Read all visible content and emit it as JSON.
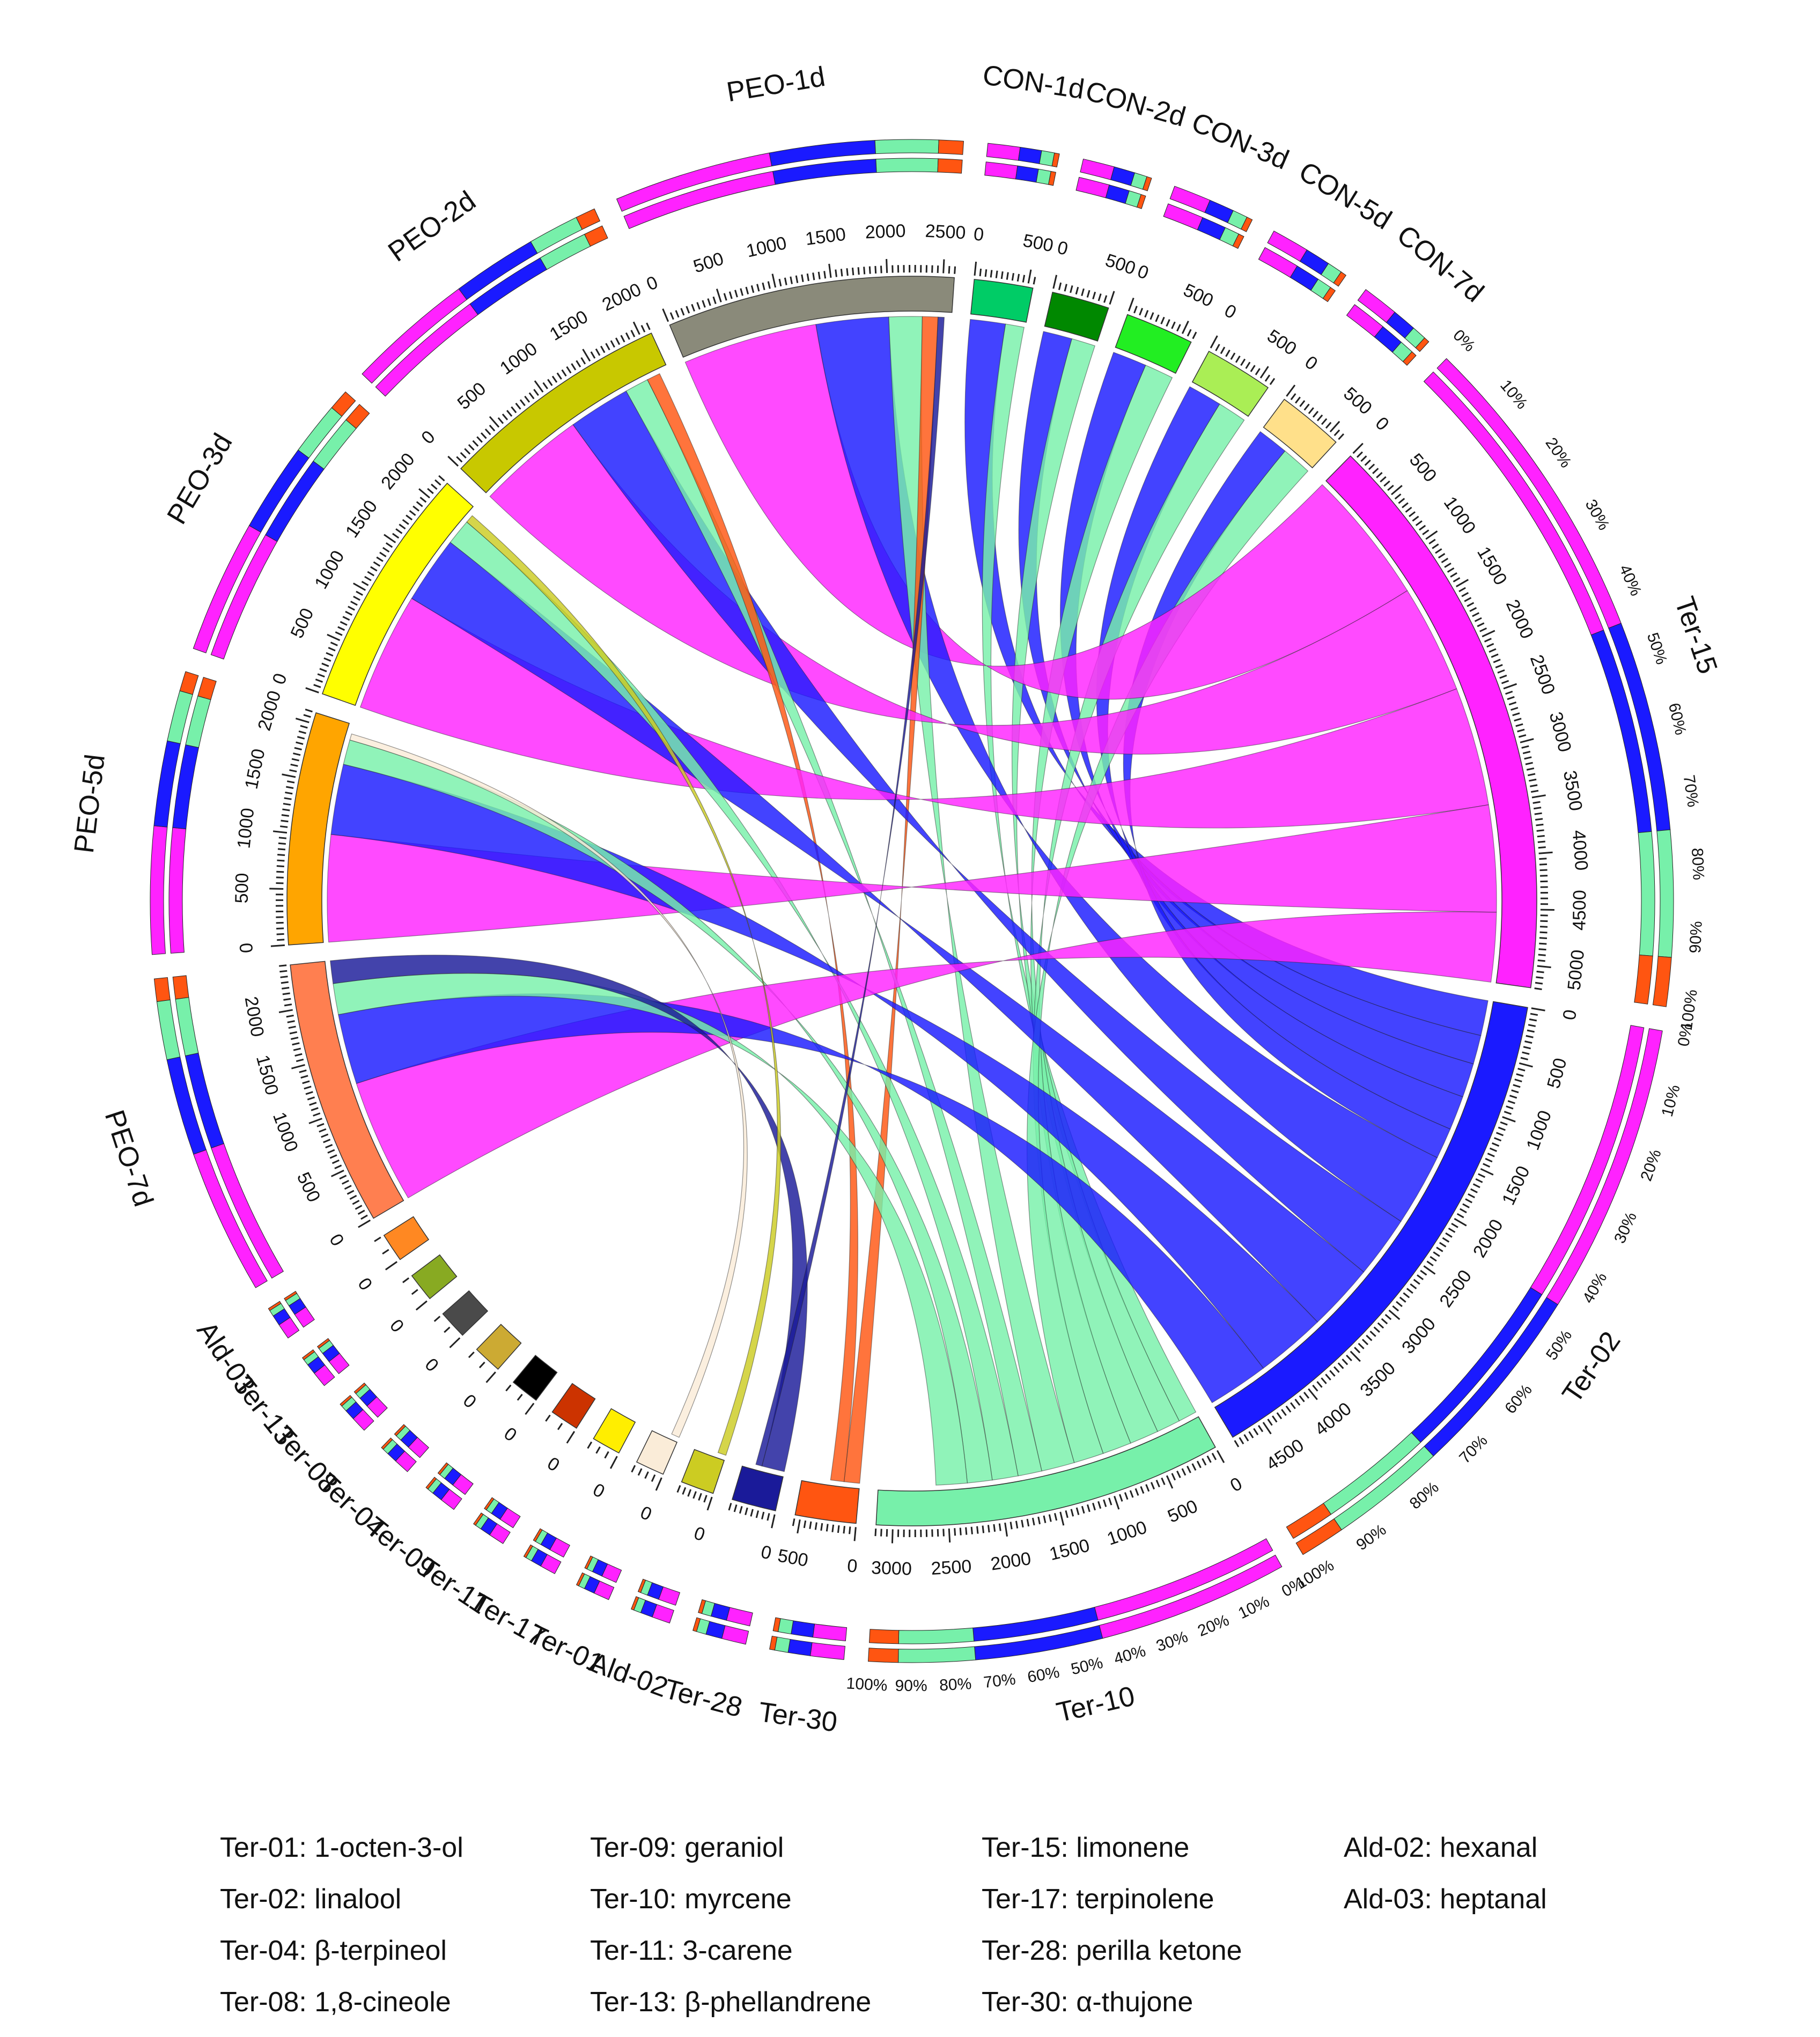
{
  "chart_data": {
    "type": "chord",
    "title": "",
    "samples": [
      {
        "id": "CON-1d",
        "total": 530,
        "scale_ticks": [
          "0",
          "500"
        ]
      },
      {
        "id": "CON-2d",
        "total": 520,
        "scale_ticks": [
          "0",
          "500"
        ]
      },
      {
        "id": "CON-3d",
        "total": 620,
        "scale_ticks": [
          "0",
          "500"
        ]
      },
      {
        "id": "CON-5d",
        "total": 620,
        "scale_ticks": [
          "0",
          "500"
        ]
      },
      {
        "id": "CON-7d",
        "total": 600,
        "scale_ticks": [
          "0",
          "500"
        ]
      },
      {
        "id": "Ter-15",
        "total": 5200,
        "scale_ticks": [
          "0",
          "500",
          "1000",
          "1500",
          "2000",
          "2500",
          "3000",
          "3500",
          "4000",
          "4500",
          "5000"
        ]
      },
      {
        "id": "Ter-02",
        "total": 4800,
        "scale_ticks": [
          "0",
          "500",
          "1000",
          "1500",
          "2000",
          "2500",
          "3000",
          "3500",
          "4000",
          "4500"
        ]
      },
      {
        "id": "Ter-10",
        "total": 3150,
        "scale_ticks": [
          "0",
          "500",
          "1000",
          "1500",
          "2000",
          "2500",
          "3000"
        ]
      },
      {
        "id": "Ter-30",
        "total": 550,
        "scale_ticks": [
          "0",
          "500"
        ]
      },
      {
        "id": "Ter-28",
        "total": 400,
        "scale_ticks": [
          "0"
        ]
      },
      {
        "id": "Ald-02",
        "total": 300,
        "scale_ticks": [
          "0"
        ]
      },
      {
        "id": "Ter-01",
        "total": 200,
        "scale_ticks": [
          "0"
        ]
      },
      {
        "id": "Ter-17",
        "total": 150,
        "scale_ticks": [
          "0"
        ]
      },
      {
        "id": "Ter-11",
        "total": 120,
        "scale_ticks": [
          "0"
        ]
      },
      {
        "id": "Ter-09",
        "total": 100,
        "scale_ticks": [
          "0"
        ]
      },
      {
        "id": "Ter-04",
        "total": 90,
        "scale_ticks": [
          "0"
        ]
      },
      {
        "id": "Ter-08",
        "total": 80,
        "scale_ticks": [
          "0"
        ]
      },
      {
        "id": "Ter-13",
        "total": 70,
        "scale_ticks": [
          "0"
        ]
      },
      {
        "id": "Ald-03",
        "total": 60,
        "scale_ticks": [
          "0"
        ]
      },
      {
        "id": "PEO-7d",
        "total": 2400,
        "scale_ticks": [
          "0",
          "500",
          "1000",
          "1500",
          "2000"
        ]
      },
      {
        "id": "PEO-5d",
        "total": 2100,
        "scale_ticks": [
          "0",
          "500",
          "1000",
          "1500",
          "2000"
        ]
      },
      {
        "id": "PEO-3d",
        "total": 2200,
        "scale_ticks": [
          "0",
          "500",
          "1000",
          "1500",
          "2000"
        ]
      },
      {
        "id": "PEO-2d",
        "total": 2100,
        "scale_ticks": [
          "0",
          "500",
          "1000",
          "1500",
          "2000"
        ]
      },
      {
        "id": "PEO-1d",
        "total": 2600,
        "scale_ticks": [
          "0",
          "500",
          "1000",
          "1500",
          "2000",
          "2500"
        ]
      }
    ],
    "percent_ticks": [
      "0%",
      "10%",
      "20%",
      "30%",
      "40%",
      "50%",
      "60%",
      "70%",
      "80%",
      "90%",
      "100%"
    ],
    "colors": {
      "CON-1d": "#00cc66",
      "CON-2d": "#008800",
      "CON-3d": "#22ee22",
      "CON-5d": "#aaee55",
      "CON-7d": "#ffe08a",
      "Ter-15": "#ff22ff",
      "Ter-02": "#1a1aff",
      "Ter-10": "#77f0aa",
      "Ter-30": "#ff5511",
      "Ter-28": "#1a1a99",
      "Ald-02": "#cccc22",
      "Ter-01": "#faecd8",
      "Ter-17": "#ffee00",
      "Ter-11": "#cc3300",
      "Ter-09": "#000000",
      "Ter-04": "#ccaa33",
      "Ter-08": "#4a4a4a",
      "Ter-13": "#88aa22",
      "Ald-03": "#ff8822",
      "PEO-7d": "#ff7f50",
      "PEO-5d": "#ffa500",
      "PEO-3d": "#ffff00",
      "PEO-2d": "#c8c800",
      "PEO-1d": "#8a8a7a"
    },
    "links": [
      {
        "source": "CON-1d",
        "target": "Ter-15",
        "value": 0
      },
      {
        "source": "CON-1d",
        "target": "Ter-02",
        "value": 340
      },
      {
        "source": "CON-1d",
        "target": "Ter-10",
        "value": 180
      },
      {
        "source": "CON-2d",
        "target": "Ter-02",
        "value": 280
      },
      {
        "source": "CON-2d",
        "target": "Ter-10",
        "value": 230
      },
      {
        "source": "CON-3d",
        "target": "Ter-02",
        "value": 330
      },
      {
        "source": "CON-3d",
        "target": "Ter-10",
        "value": 280
      },
      {
        "source": "CON-5d",
        "target": "Ter-02",
        "value": 330
      },
      {
        "source": "CON-5d",
        "target": "Ter-10",
        "value": 280
      },
      {
        "source": "CON-7d",
        "target": "Ter-02",
        "value": 300
      },
      {
        "source": "CON-7d",
        "target": "Ter-10",
        "value": 290
      },
      {
        "source": "PEO-1d",
        "target": "Ter-15",
        "value": 1300
      },
      {
        "source": "PEO-1d",
        "target": "Ter-02",
        "value": 700
      },
      {
        "source": "PEO-1d",
        "target": "Ter-10",
        "value": 320
      },
      {
        "source": "PEO-1d",
        "target": "Ter-30",
        "value": 150
      },
      {
        "source": "PEO-2d",
        "target": "Ter-15",
        "value": 1050
      },
      {
        "source": "PEO-2d",
        "target": "Ter-02",
        "value": 600
      },
      {
        "source": "PEO-2d",
        "target": "Ter-10",
        "value": 230
      },
      {
        "source": "PEO-2d",
        "target": "Ter-30",
        "value": 130
      },
      {
        "source": "PEO-3d",
        "target": "Ter-15",
        "value": 1150
      },
      {
        "source": "PEO-3d",
        "target": "Ter-02",
        "value": 650
      },
      {
        "source": "PEO-3d",
        "target": "Ter-10",
        "value": 250
      },
      {
        "source": "PEO-5d",
        "target": "Ter-15",
        "value": 1030
      },
      {
        "source": "PEO-5d",
        "target": "Ter-02",
        "value": 680
      },
      {
        "source": "PEO-5d",
        "target": "Ter-10",
        "value": 240
      },
      {
        "source": "PEO-7d",
        "target": "Ter-15",
        "value": 1200
      },
      {
        "source": "PEO-7d",
        "target": "Ter-02",
        "value": 680
      },
      {
        "source": "PEO-7d",
        "target": "Ter-10",
        "value": 300
      },
      {
        "source": "PEO-7d",
        "target": "Ter-28",
        "value": 220
      },
      {
        "source": "PEO-1d",
        "target": "Ter-28",
        "value": 60
      },
      {
        "source": "PEO-3d",
        "target": "Ald-02",
        "value": 80
      },
      {
        "source": "PEO-5d",
        "target": "Ter-01",
        "value": 60
      }
    ]
  },
  "legend": {
    "columns": [
      [
        "Ter-01: 1-octen-3-ol",
        "Ter-02: linalool",
        "Ter-04: β-terpineol",
        "Ter-08: 1,8-cineole"
      ],
      [
        "Ter-09: geraniol",
        "Ter-10: myrcene",
        "Ter-11: 3-carene",
        "Ter-13: β-phellandrene"
      ],
      [
        "Ter-15: limonene",
        "Ter-17: terpinolene",
        "Ter-28: perilla ketone",
        "Ter-30: α-thujone"
      ],
      [
        "Ald-02: hexanal",
        "Ald-03: heptanal"
      ]
    ]
  }
}
